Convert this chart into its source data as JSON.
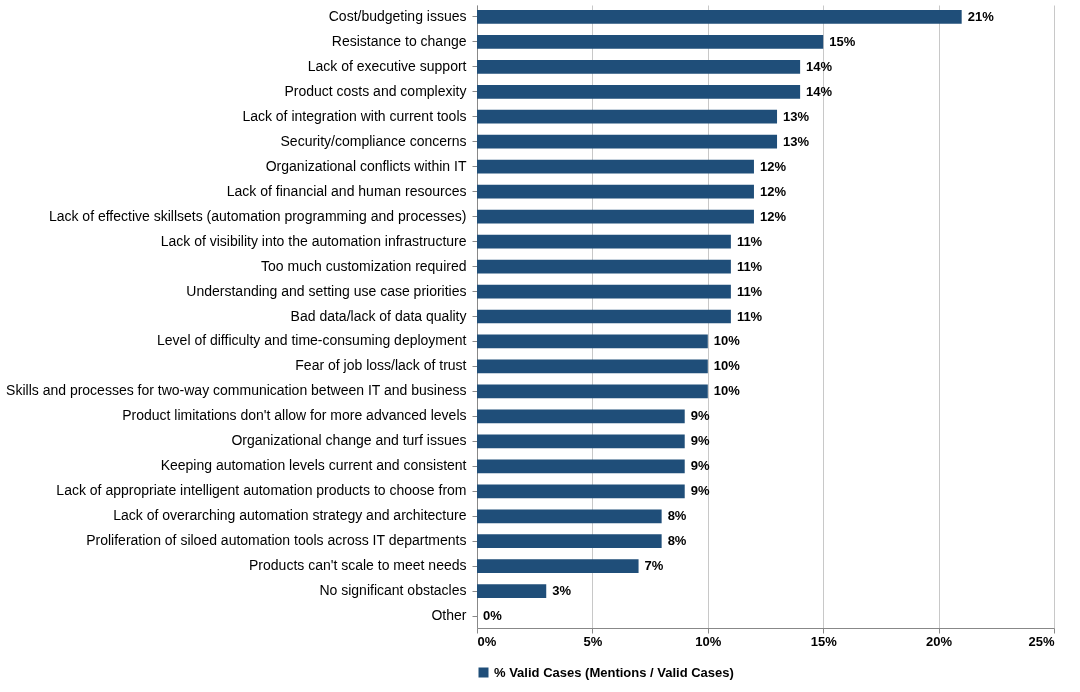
{
  "chart_data": {
    "type": "bar",
    "orientation": "horizontal",
    "categories": [
      "Cost/budgeting issues",
      "Resistance to change",
      "Lack of executive support",
      "Product costs and complexity",
      "Lack of integration with current tools",
      "Security/compliance concerns",
      "Organizational conflicts within IT",
      "Lack of financial and human resources",
      "Lack of effective skillsets (automation programming and processes)",
      "Lack of visibility into the automation infrastructure",
      "Too much customization required",
      "Understanding and setting use case priorities",
      "Bad data/lack of data quality",
      "Level of difficulty and time-consuming deployment",
      "Fear of job loss/lack of trust",
      "Skills and processes for two-way communication between IT and business",
      "Product limitations don't allow for more advanced levels",
      "Organizational change and turf issues",
      "Keeping automation levels current and consistent",
      "Lack of appropriate intelligent automation products to choose from",
      "Lack of overarching automation strategy and architecture",
      "Proliferation of siloed automation tools across IT departments",
      "Products can't scale to meet needs",
      "No significant obstacles",
      "Other"
    ],
    "series": [
      {
        "name": "% Valid Cases (Mentions / Valid Cases)",
        "color": "#1f4e79",
        "values": [
          21,
          15,
          14,
          14,
          13,
          13,
          12,
          12,
          12,
          11,
          11,
          11,
          11,
          10,
          10,
          10,
          9,
          9,
          9,
          9,
          8,
          8,
          7,
          3,
          0
        ]
      }
    ],
    "value_labels": [
      "21%",
      "15%",
      "14%",
      "14%",
      "13%",
      "13%",
      "12%",
      "12%",
      "12%",
      "11%",
      "11%",
      "11%",
      "11%",
      "10%",
      "10%",
      "10%",
      "9%",
      "9%",
      "9%",
      "9%",
      "8%",
      "8%",
      "7%",
      "3%",
      "0%"
    ],
    "xlim": [
      0,
      25
    ],
    "xticks": [
      {
        "value": 0,
        "label": "0%"
      },
      {
        "value": 5,
        "label": "5%"
      },
      {
        "value": 10,
        "label": "10%"
      },
      {
        "value": 15,
        "label": "15%"
      },
      {
        "value": 20,
        "label": "20%"
      },
      {
        "value": 25,
        "label": "25%"
      }
    ],
    "grid": "x",
    "legend": "bottom"
  }
}
